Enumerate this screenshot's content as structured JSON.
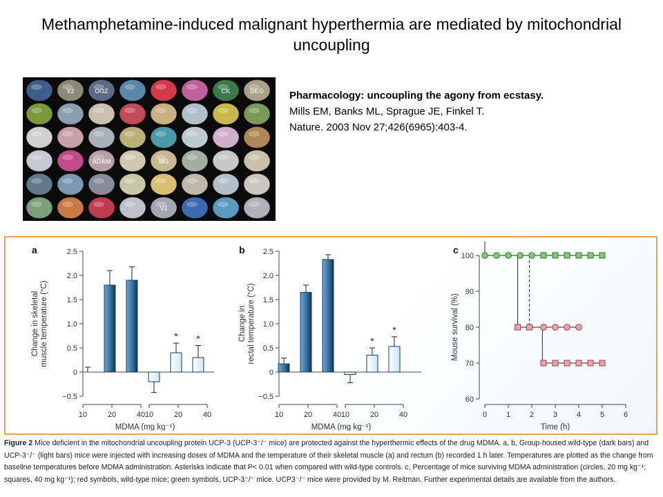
{
  "title": "Methamphetamine-induced malignant hyperthermia are mediated by mitochondrial uncoupling",
  "photo": {
    "description": "ecstasy-tablets-photo",
    "tablet_texts": [
      "V2",
      "OOZ",
      "CK",
      "DEG",
      "ADAM",
      "MG",
      "V2"
    ]
  },
  "reference": {
    "headline": "Pharmacology: uncoupling the agony from ecstasy.",
    "authors": "Mills EM, Banks ML, Sprague JE, Finkel T.",
    "citation": "Nature. 2003 Nov 27;426(6965):403-4."
  },
  "figure_caption": {
    "label": "Figure 2",
    "text": "Mice deficient in the mitochondrial uncoupling protein UCP-3 (UCP-3⁻/⁻ mice) are protected against the hyperthermic effects of the drug MDMA. a, b, Group-housed wild-type (dark bars) and UCP-3⁻/⁻ (light bars) mice were injected with increasing doses of MDMA and the temperature of their skeletal muscle (a) and rectum (b) recorded 1 h later. Temperatures are plotted as the change from baseline temperatures before MDMA administration. Asterisks indicate that P< 0.01 when compared with wild-type controls. c, Percentage of mice surviving MDMA administration (circles, 20 mg kg⁻¹; squares, 40 mg kg⁻¹): red symbols, wild-type mice; green symbols, UCP-3⁻/⁻ mice. UCP3⁻/⁻ mice were provided by M. Reitman. Further experimental details are available from the authors."
  },
  "colors": {
    "dark_bar": "#2f6d9c",
    "light_bar": "#cfe6f5",
    "red_symbol": "#e8a6ab",
    "green_symbol": "#7ec97a",
    "frame": "#e8a15c"
  },
  "chart_data": [
    {
      "type": "bar",
      "panel_label": "a",
      "ylabel": "Change in skeletal muscle temperature (°C)",
      "xlabel": "MDMA (mg kg⁻¹)",
      "ylim": [
        -0.5,
        2.5
      ],
      "yticks": [
        "2.5",
        "2.0",
        "1.5",
        "1.0",
        "0.5",
        "0",
        "−0.5"
      ],
      "ytick_values": [
        2.5,
        2.0,
        1.5,
        1.0,
        0.5,
        0,
        -0.5
      ],
      "groups": [
        {
          "name": "",
          "categories": [
            "10",
            "20",
            "40"
          ],
          "values": [
            0.0,
            1.8,
            1.9
          ],
          "errors": [
            0.1,
            0.3,
            0.28
          ],
          "sig": [
            "",
            "",
            ""
          ],
          "fill": "dark"
        },
        {
          "name": "",
          "categories": [
            "10",
            "20",
            "40"
          ],
          "values": [
            -0.2,
            0.4,
            0.3
          ],
          "errors": [
            0.22,
            0.2,
            0.25
          ],
          "sig": [
            "",
            "*",
            "*"
          ],
          "fill": "light"
        }
      ],
      "xticks": [
        "10",
        "20",
        "40",
        "10",
        "20",
        "40"
      ]
    },
    {
      "type": "bar",
      "panel_label": "b",
      "ylabel": "Change in rectal temperature (°C)",
      "xlabel": "MDMA (mg kg⁻¹)",
      "ylim": [
        -0.5,
        2.5
      ],
      "yticks": [
        "2.5",
        "2.0",
        "1.5",
        "1.0",
        "0.5",
        "0",
        "−0.5"
      ],
      "ytick_values": [
        2.5,
        2.0,
        1.5,
        1.0,
        0.5,
        0,
        -0.5
      ],
      "groups": [
        {
          "name": "",
          "categories": [
            "10",
            "20",
            "40"
          ],
          "values": [
            0.17,
            1.65,
            2.33
          ],
          "errors": [
            0.12,
            0.15,
            0.1
          ],
          "sig": [
            "",
            "",
            ""
          ],
          "fill": "dark"
        },
        {
          "name": "",
          "categories": [
            "10",
            "20",
            "40"
          ],
          "values": [
            -0.05,
            0.35,
            0.53
          ],
          "errors": [
            0.17,
            0.15,
            0.2
          ],
          "sig": [
            "",
            "*",
            "*"
          ],
          "fill": "light"
        }
      ],
      "xticks": [
        "10",
        "20",
        "40",
        "10",
        "20",
        "40"
      ]
    },
    {
      "type": "line",
      "panel_label": "c",
      "ylabel": "Mouse survival (%)",
      "xlabel": "Time (h)",
      "xlim": [
        0,
        6
      ],
      "ylim": [
        60,
        100
      ],
      "xticks": [
        "0",
        "1",
        "2",
        "3",
        "4",
        "5",
        "6"
      ],
      "yticks": [
        "100",
        "90",
        "80",
        "70",
        "60"
      ],
      "series": [
        {
          "name": "",
          "marker": "circle",
          "color": "green",
          "x": [
            0,
            0.5,
            1,
            1.5,
            2
          ],
          "y": [
            100,
            100,
            100,
            100,
            100
          ]
        },
        {
          "name": "",
          "marker": "square",
          "color": "green",
          "x": [
            1.5,
            2,
            2.5,
            3,
            3.5,
            4,
            4.5,
            5
          ],
          "y": [
            100,
            100,
            100,
            100,
            100,
            100,
            100,
            100
          ]
        },
        {
          "name": "",
          "marker": "circle",
          "color": "red",
          "x": [
            0,
            0.5,
            1,
            1.5,
            2,
            2.5,
            3,
            3.5,
            4
          ],
          "y": [
            100,
            100,
            100,
            80,
            80,
            80,
            80,
            80,
            80
          ]
        },
        {
          "name": "",
          "marker": "square",
          "color": "red",
          "x": [
            0,
            0.5,
            1,
            1.5,
            2,
            2.5,
            3,
            3.5,
            4,
            4.5,
            5
          ],
          "y": [
            100,
            100,
            100,
            80,
            80,
            70,
            70,
            70,
            70,
            70,
            70
          ]
        }
      ]
    }
  ]
}
